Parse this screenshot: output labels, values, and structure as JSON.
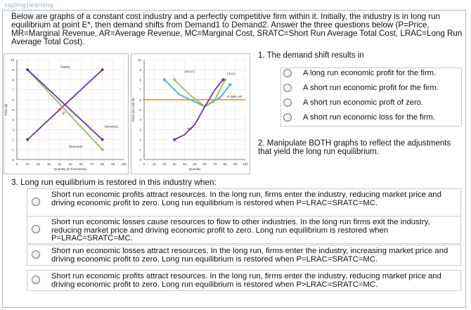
{
  "logo": {
    "left": "sapling",
    "right": "learning"
  },
  "intro": "Below are graphs of a constant cost industry and a perfectly competitive firm within it. Initially, the industry is in long run equilibrium at point E*, then demand shifts from Demand1 to Demand2. Answer the three questions below (P=Price, MR=Marginal Revenue, AR=Average Revenue, MC=Marginal Cost, SRATC=Short Run Average Total Cost, LRAC=Long Run Average Total Cost).",
  "chart_data": [
    {
      "type": "line",
      "title": "",
      "xlabel": "Quantity (in thousands)",
      "ylabel": "Price ($)",
      "xlim": [
        0,
        100
      ],
      "ylim": [
        0,
        10
      ],
      "x_ticks": [
        "0",
        "10",
        "20",
        "30",
        "40",
        "50",
        "60",
        "70",
        "80",
        "90",
        "100"
      ],
      "y_ticks": [
        "0",
        "1",
        "2",
        "3",
        "4",
        "5",
        "6",
        "7",
        "8",
        "9",
        "10"
      ],
      "grid": true,
      "series": [
        {
          "name": "Supply",
          "points": [
            [
              10,
              2
            ],
            [
              80,
              9
            ]
          ],
          "color": "#7030a0"
        },
        {
          "name": "Demand1",
          "points": [
            [
              10,
              9
            ],
            [
              80,
              1
            ]
          ],
          "color": "#9bbb59"
        },
        {
          "name": "Demand2",
          "points": [
            [
              10,
              9
            ],
            [
              80,
              2
            ]
          ],
          "color": "#7030a0"
        }
      ],
      "point_label": "E*",
      "point": [
        40,
        5
      ]
    },
    {
      "type": "line",
      "title": "",
      "xlabel": "Quantity",
      "ylabel": "Price per Unit ($)",
      "xlim": [
        0,
        100
      ],
      "ylim": [
        0,
        10
      ],
      "x_ticks": [
        "0",
        "10",
        "20",
        "30",
        "40",
        "50",
        "60",
        "70",
        "80",
        "90",
        "100"
      ],
      "y_ticks": [
        "0",
        "1",
        "2",
        "3",
        "4",
        "5",
        "6",
        "7",
        "8",
        "9",
        "10"
      ],
      "grid": true,
      "series": [
        {
          "name": "P=MR=AR",
          "points": [
            [
              0,
              6
            ],
            [
              100,
              6
            ]
          ],
          "color": "#f79646"
        },
        {
          "name": "SRATC",
          "points": [
            [
              20,
              8
            ],
            [
              35,
              6.5
            ],
            [
              50,
              5.8
            ],
            [
              60,
              5.3
            ],
            [
              75,
              6.2
            ],
            [
              85,
              7.5
            ]
          ],
          "color": "#4bacc6"
        },
        {
          "name": "LRAC",
          "points": [
            [
              30,
              8
            ],
            [
              45,
              6.5
            ],
            [
              60,
              5.3
            ],
            [
              70,
              6
            ],
            [
              80,
              8
            ]
          ],
          "color": "#9bbb59"
        },
        {
          "name": "MC",
          "points": [
            [
              30,
              2
            ],
            [
              40,
              2.5
            ],
            [
              50,
              3.5
            ],
            [
              60,
              5.3
            ],
            [
              70,
              7
            ],
            [
              78,
              8
            ]
          ],
          "color": "#7030a0"
        }
      ]
    }
  ],
  "q1": {
    "prompt": "1. The demand shift results in",
    "options": [
      "A long run economic profit for the firm.",
      "A short run economic profit for the firm.",
      "A short run economic proft of zero.",
      "A short run economic loss for the firm."
    ]
  },
  "q2": {
    "prompt": "2. Manipulate BOTH graphs to reflect the adjustments that yield the long run equilibrium."
  },
  "q3": {
    "prompt": "3. Long run equilibrium is restored in this industry when:",
    "options": [
      "Short run economic profits attract resources. In the long run, firms enter the industry, reducing market price and driving economic profit to zero. Long run equilibrium is restored when P=LRAC=SRATC=MC.",
      "Short run economic losses cause resources to flow to other industries. In the long run firms exit the industry, reducing market price and driving economic profit to zero. Long run equilibrium is restored when P=LRAC=SRATC=MC.",
      "Short run economic losses attract resources. In the long run, firms enter the industry, increasing market price and driving economic profit to zero. Long run equilibrium is restored when P=LRAC=SRATC=MC.",
      "Short run economic profits attract resources. In the long run, firms enter the industry, reducing market price and driving economic profit to zero. Long run equilibrium is restored when P>LRAC=SRATC=MC."
    ]
  }
}
